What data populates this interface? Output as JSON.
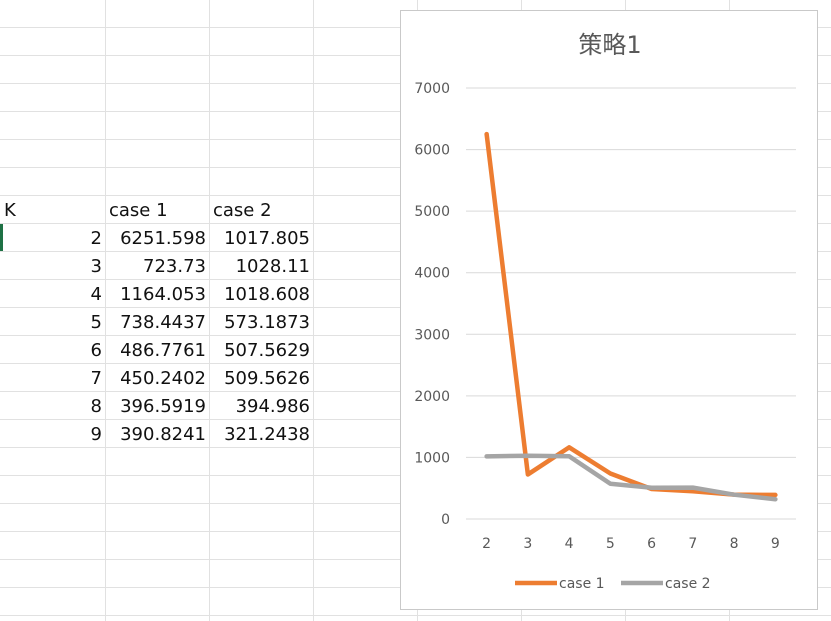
{
  "sheet": {
    "header": {
      "k": "K",
      "case1": "case 1",
      "case2": "case 2"
    },
    "rows": [
      {
        "k": "2",
        "case1": "6251.598",
        "case2": "1017.805"
      },
      {
        "k": "3",
        "case1": "723.73",
        "case2": "1028.11"
      },
      {
        "k": "4",
        "case1": "1164.053",
        "case2": "1018.608"
      },
      {
        "k": "5",
        "case1": "738.4437",
        "case2": "573.1873"
      },
      {
        "k": "6",
        "case1": "486.7761",
        "case2": "507.5629"
      },
      {
        "k": "7",
        "case1": "450.2402",
        "case2": "509.5626"
      },
      {
        "k": "8",
        "case1": "396.5919",
        "case2": "394.986"
      },
      {
        "k": "9",
        "case1": "390.8241",
        "case2": "321.2438"
      }
    ]
  },
  "chart_data": {
    "type": "line",
    "title": "策略1",
    "categories": [
      "2",
      "3",
      "4",
      "5",
      "6",
      "7",
      "8",
      "9"
    ],
    "series": [
      {
        "name": "case 1",
        "color": "#ed7d31",
        "values": [
          6251.598,
          723.73,
          1164.053,
          738.4437,
          486.7761,
          450.2402,
          396.5919,
          390.8241
        ]
      },
      {
        "name": "case 2",
        "color": "#a5a5a5",
        "values": [
          1017.805,
          1028.11,
          1018.608,
          573.1873,
          507.5629,
          509.5626,
          394.986,
          321.2438
        ]
      }
    ],
    "y_ticks": [
      "0",
      "1000",
      "2000",
      "3000",
      "4000",
      "5000",
      "6000",
      "7000"
    ],
    "ylim": [
      0,
      7000
    ],
    "grid": true,
    "legend_position": "bottom"
  }
}
